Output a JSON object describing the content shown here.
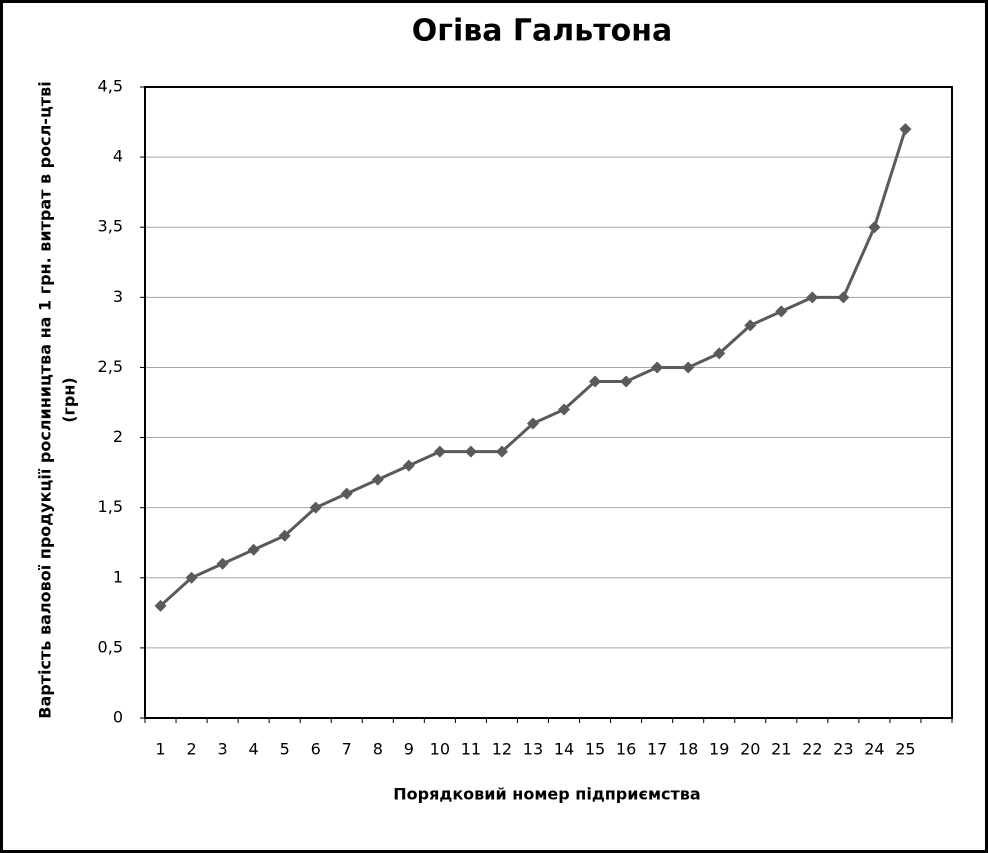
{
  "chart_data": {
    "type": "line",
    "title": "Огіва Гальтона",
    "x_label": "Порядковий номер підприємства",
    "y_label": [
      "Вартість валової продукції рослиництва на 1 грн. витрат в росл-цтві",
      "(грн)"
    ],
    "categories": [
      1,
      2,
      3,
      4,
      5,
      6,
      7,
      8,
      9,
      10,
      11,
      12,
      13,
      14,
      15,
      16,
      17,
      18,
      19,
      20,
      21,
      22,
      23,
      24,
      25,
      null
    ],
    "series": [
      {
        "color": "#5a5a5a",
        "values": [
          0.8,
          1.0,
          1.1,
          1.2,
          1.3,
          1.5,
          1.6,
          1.7,
          1.8,
          1.9,
          1.9,
          1.9,
          2.1,
          2.2,
          2.4,
          2.4,
          2.5,
          2.5,
          2.6,
          2.8,
          2.9,
          3.0,
          3.0,
          3.5,
          4.2,
          null
        ]
      }
    ],
    "ylim": [
      0,
      4.5
    ],
    "yticks": [
      0,
      {
        "value": 0.5,
        "label": "0,5"
      },
      1,
      {
        "value": 1.5,
        "label": "1,5"
      },
      2,
      {
        "value": 2.5,
        "label": "2,5"
      },
      3,
      {
        "value": 3.5,
        "label": "3,5"
      },
      4,
      {
        "value": 4.5,
        "label": "4,5"
      }
    ],
    "grid": true
  }
}
